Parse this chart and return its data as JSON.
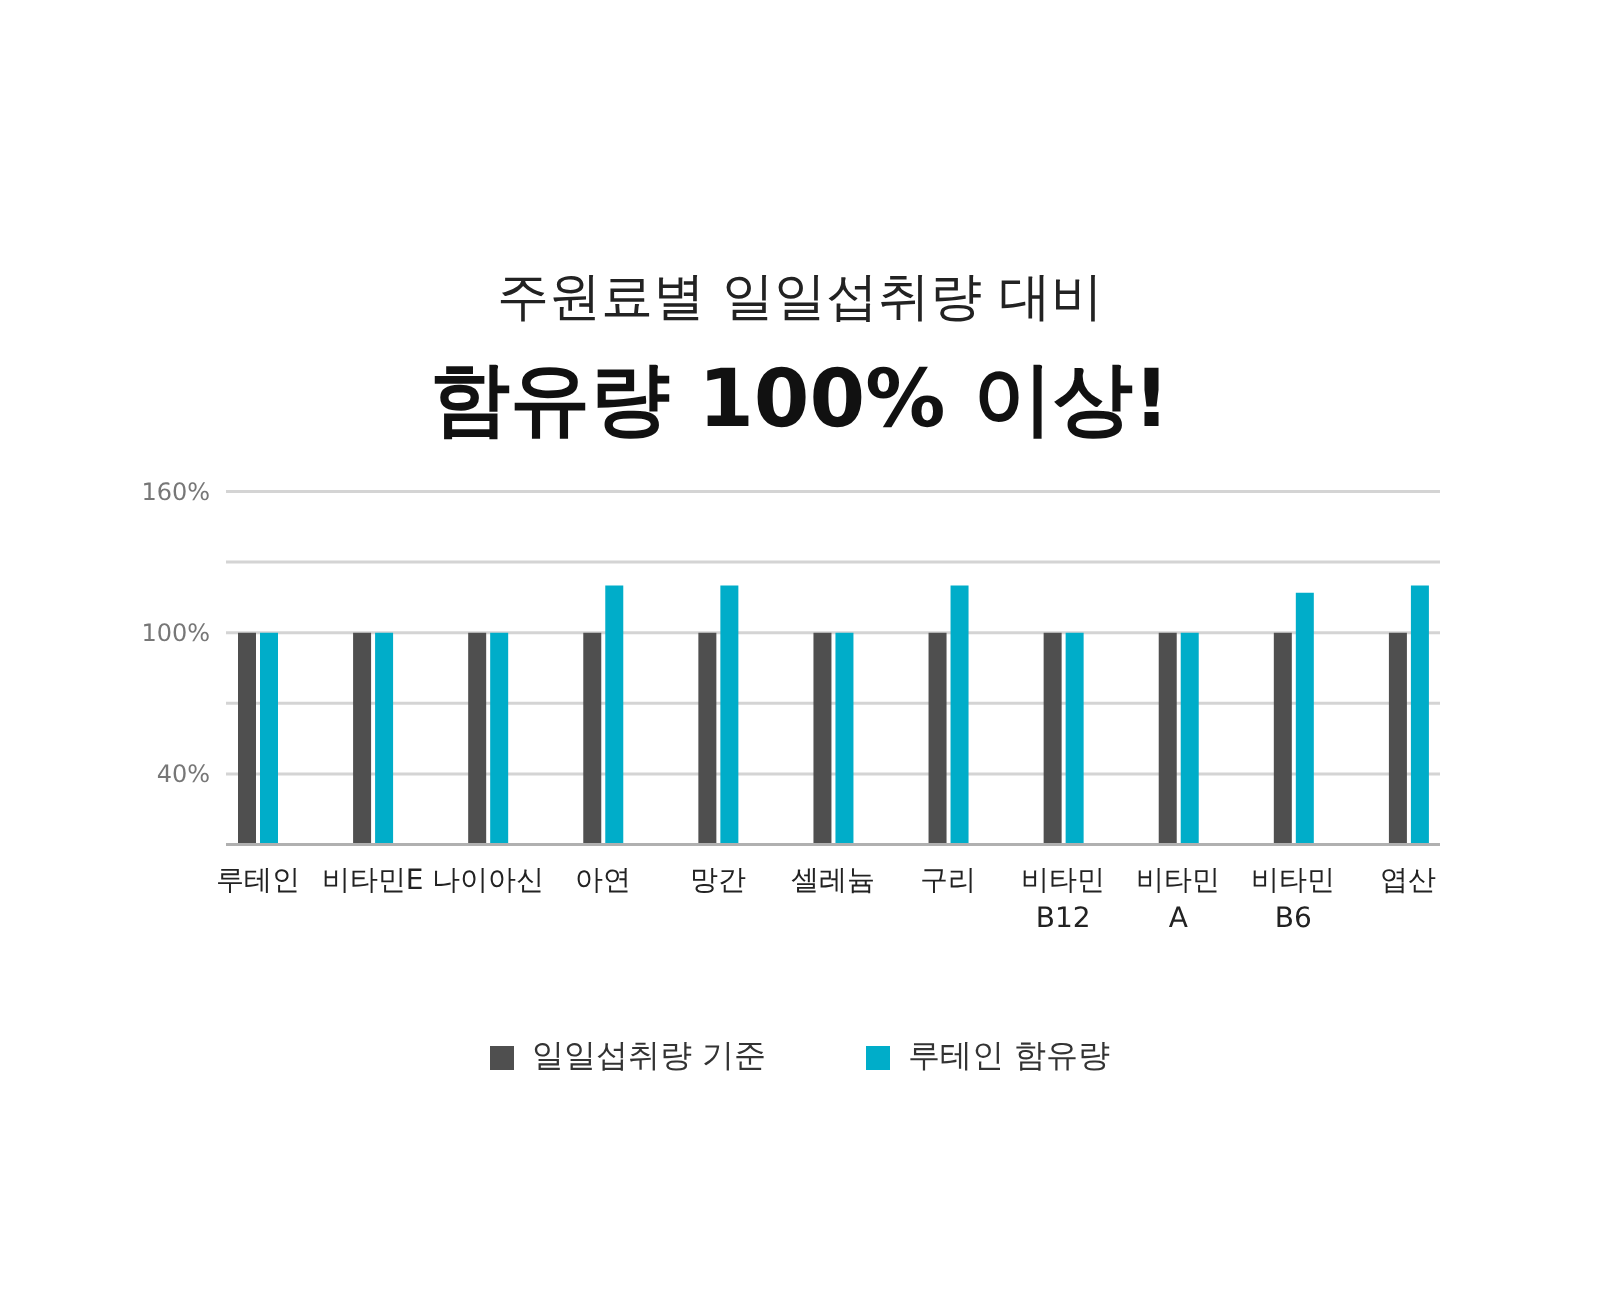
{
  "chart_data": {
    "type": "bar",
    "title": "주원료별 일일섭취량 대비",
    "subtitle": "함유량 100% 이상!",
    "categories": [
      "루테인",
      "비타민E",
      "나이아신",
      "아연",
      "망간",
      "셀레늄",
      "구리",
      "비타민 B12",
      "비타민 A",
      "비타민 B6",
      "엽산"
    ],
    "series": [
      {
        "name": "일일섭취량 기준",
        "color": "#4f4f4f",
        "values": [
          100,
          100,
          100,
          100,
          100,
          100,
          100,
          100,
          100,
          100,
          100
        ]
      },
      {
        "name": "루테인 함유량",
        "color": "#00adc9",
        "values": [
          100,
          100,
          100,
          120,
          120,
          100,
          120,
          100,
          100,
          117,
          120
        ]
      }
    ],
    "ylim": [
      10,
      160
    ],
    "yticks": [
      {
        "value": 10,
        "label": null
      },
      {
        "value": 40,
        "label": "40%"
      },
      {
        "value": 70,
        "label": null
      },
      {
        "value": 100,
        "label": "100%"
      },
      {
        "value": 130,
        "label": null
      },
      {
        "value": 160,
        "label": "160%"
      }
    ],
    "grid": "y",
    "legend": "bottom"
  }
}
